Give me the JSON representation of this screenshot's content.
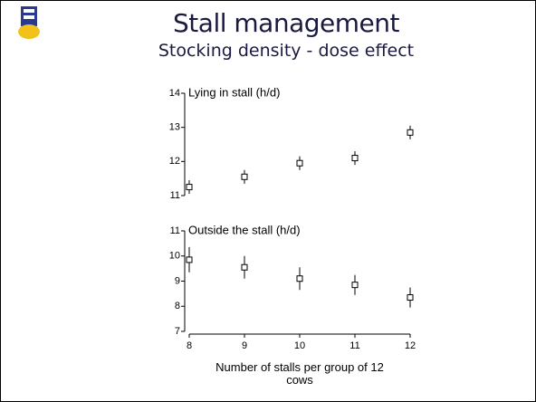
{
  "title": "Stall management",
  "subtitle": "Stocking density - dose effect",
  "chart_data": [
    {
      "type": "scatter",
      "y_label": "Lying in stall (h/d)",
      "x": [
        8,
        9,
        10,
        11,
        12
      ],
      "values": [
        11.25,
        11.55,
        11.95,
        12.1,
        12.85
      ],
      "errors": [
        0.2,
        0.2,
        0.2,
        0.2,
        0.2
      ],
      "xlim": [
        8,
        12
      ],
      "ylim": [
        11,
        14
      ],
      "yticks": [
        11,
        12,
        13,
        14
      ],
      "color": "#000000"
    },
    {
      "type": "scatter",
      "y_label": "Outside the stall (h/d)",
      "x_label": "Number of stalls per group of 12 cows",
      "x": [
        8,
        9,
        10,
        11,
        12
      ],
      "values": [
        9.85,
        9.55,
        9.1,
        8.85,
        8.35
      ],
      "errors": [
        0.5,
        0.45,
        0.45,
        0.4,
        0.4
      ],
      "xlim": [
        8,
        12
      ],
      "ylim": [
        7,
        11
      ],
      "xticks": [
        8,
        9,
        10,
        11,
        12
      ],
      "yticks": [
        7,
        8,
        9,
        10,
        11
      ],
      "color": "#000000"
    }
  ]
}
